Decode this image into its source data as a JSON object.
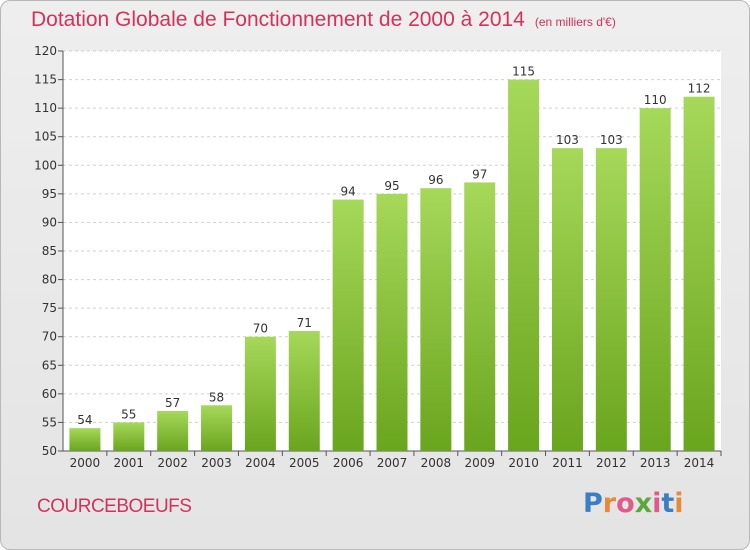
{
  "title": "Dotation Globale de Fonctionnement de 2000 à 2014",
  "subtitle": "(en milliers d'€)",
  "commune": "COURCEBOEUFS",
  "logo": {
    "letters": [
      "P",
      "r",
      "o",
      "x",
      "i",
      "t",
      "i"
    ],
    "colors": [
      "#3a7fc4",
      "#e8893a",
      "#e05a8a",
      "#5aa83a",
      "#e05a8a",
      "#3a7fc4",
      "#e8893a"
    ]
  },
  "colors": {
    "title": "#d4325a",
    "bar_top": "#a6d85a",
    "bar_bottom": "#6aa51e"
  },
  "chart_data": {
    "type": "bar",
    "categories": [
      "2000",
      "2001",
      "2002",
      "2003",
      "2004",
      "2005",
      "2006",
      "2007",
      "2008",
      "2009",
      "2010",
      "2011",
      "2012",
      "2013",
      "2014"
    ],
    "values": [
      54,
      55,
      57,
      58,
      70,
      71,
      94,
      95,
      96,
      97,
      115,
      103,
      103,
      110,
      112
    ],
    "ylim": [
      50,
      120
    ],
    "yticks": [
      50,
      55,
      60,
      65,
      70,
      75,
      80,
      85,
      90,
      95,
      100,
      105,
      110,
      115,
      120
    ],
    "grid": true
  }
}
